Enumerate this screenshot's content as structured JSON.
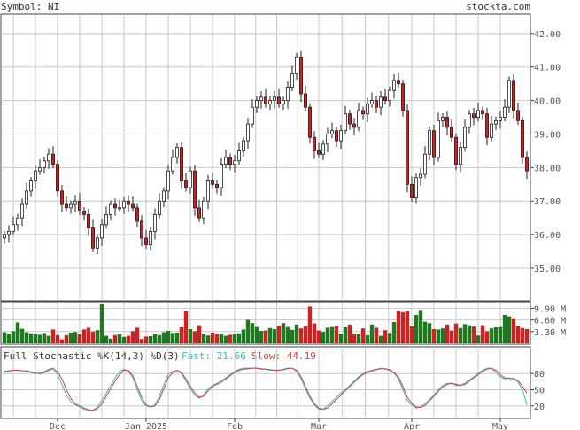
{
  "header": {
    "symbol_label": "Symbol: NI",
    "brand": "stockta.com"
  },
  "stochastic": {
    "title": "Full Stochastic %K(14,3) %D(3)",
    "fast_label": "Fast: 21.66",
    "slow_label": "Slow: 44.19",
    "fast_color": "#44b7b7",
    "slow_color": "#cc4444",
    "levels": [
      80,
      50,
      20
    ]
  },
  "volume_axis": {
    "ticks": [
      "9.90 M",
      "6.60 M",
      "3.30 M"
    ],
    "values": [
      9.9,
      6.6,
      3.3
    ],
    "max": 11.5
  },
  "price_axis": {
    "ticks": [
      42.0,
      41.0,
      40.0,
      39.0,
      38.0,
      37.0,
      36.0,
      35.0
    ],
    "range": [
      34.05,
      42.55
    ]
  },
  "x_axis": {
    "labels": [
      {
        "text": "Dec",
        "index": 12
      },
      {
        "text": "Jan 2025",
        "index": 32
      },
      {
        "text": "Feb",
        "index": 52
      },
      {
        "text": "Mar",
        "index": 71
      },
      {
        "text": "Apr",
        "index": 92
      },
      {
        "text": "May",
        "index": 112
      }
    ]
  },
  "colors": {
    "up": "#1e7a1e",
    "down": "#cc2222",
    "grid": "#c8c8c8",
    "frame": "#444444"
  },
  "chart_data": {
    "type": "candlestick",
    "close": [
      36.0,
      36.1,
      36.3,
      36.5,
      36.9,
      37.3,
      37.6,
      37.9,
      38.0,
      38.2,
      38.4,
      38.1,
      37.3,
      36.9,
      36.8,
      36.9,
      37.0,
      36.7,
      36.6,
      36.2,
      35.6,
      35.9,
      36.3,
      36.6,
      36.9,
      36.8,
      36.8,
      37.0,
      36.9,
      36.8,
      36.4,
      35.9,
      35.7,
      36.1,
      36.6,
      37.0,
      37.3,
      37.9,
      38.3,
      38.6,
      37.6,
      37.4,
      37.9,
      36.8,
      36.5,
      37.0,
      37.6,
      37.5,
      37.4,
      38.1,
      38.3,
      38.1,
      38.2,
      38.5,
      38.8,
      39.3,
      39.8,
      40.0,
      40.1,
      39.9,
      40.0,
      40.1,
      39.9,
      40.0,
      40.4,
      40.8,
      41.3,
      40.2,
      39.8,
      38.9,
      38.5,
      38.4,
      38.7,
      39.0,
      39.1,
      38.8,
      39.1,
      39.6,
      39.3,
      39.2,
      39.7,
      39.6,
      39.9,
      40.0,
      39.8,
      40.1,
      40.0,
      40.3,
      40.6,
      40.5,
      39.7,
      37.5,
      37.1,
      37.7,
      37.8,
      38.4,
      39.1,
      38.3,
      39.4,
      39.5,
      39.2,
      38.9,
      38.1,
      38.6,
      39.2,
      39.6,
      39.5,
      39.7,
      39.6,
      38.9,
      39.3,
      39.4,
      39.5,
      39.8,
      40.6,
      39.7,
      39.4,
      38.3,
      37.9
    ],
    "volume": [
      3.1,
      2.7,
      3.4,
      5.9,
      4.1,
      3.1,
      2.8,
      2.6,
      2.4,
      2.9,
      2.1,
      3.9,
      2.3,
      1.1,
      2.3,
      3.0,
      3.2,
      2.6,
      3.9,
      4.4,
      3.3,
      3.7,
      11.0,
      2.1,
      1.3,
      2.3,
      2.6,
      1.8,
      2.1,
      3.4,
      4.4,
      1.2,
      1.9,
      2.0,
      2.6,
      2.3,
      3.1,
      3.5,
      2.9,
      3.0,
      4.5,
      9.2,
      4.0,
      3.4,
      5.1,
      2.5,
      2.2,
      3.0,
      2.6,
      2.7,
      2.1,
      2.4,
      2.6,
      2.8,
      3.9,
      6.6,
      5.7,
      4.6,
      3.5,
      3.6,
      4.3,
      4.0,
      5.0,
      5.7,
      4.6,
      3.8,
      5.3,
      4.2,
      4.8,
      10.4,
      5.6,
      3.6,
      3.2,
      4.4,
      4.6,
      4.9,
      2.7,
      4.5,
      5.3,
      2.7,
      2.5,
      4.2,
      2.3,
      5.3,
      4.4,
      2.1,
      3.7,
      2.9,
      6.0,
      9.2,
      8.8,
      9.1,
      4.8,
      8.0,
      9.4,
      6.1,
      5.7,
      4.0,
      3.9,
      4.2,
      5.3,
      3.6,
      5.6,
      4.3,
      5.4,
      5.1,
      4.7,
      2.2,
      5.1,
      3.4,
      4.2,
      4.5,
      4.6,
      8.0,
      7.6,
      7.1,
      5.0,
      4.3,
      4.0
    ],
    "stoch_k": [
      82,
      85,
      86,
      86,
      85,
      84,
      82,
      80,
      81,
      84,
      88,
      90,
      78,
      60,
      40,
      28,
      22,
      18,
      14,
      12,
      12,
      18,
      30,
      44,
      58,
      72,
      84,
      88,
      84,
      72,
      50,
      30,
      20,
      18,
      22,
      38,
      60,
      78,
      84,
      86,
      80,
      66,
      52,
      40,
      34,
      40,
      52,
      58,
      62,
      66,
      72,
      78,
      84,
      88,
      90,
      90,
      90,
      90,
      88,
      88,
      86,
      86,
      86,
      88,
      90,
      90,
      84,
      70,
      52,
      34,
      22,
      14,
      14,
      20,
      28,
      36,
      44,
      50,
      58,
      66,
      74,
      80,
      84,
      86,
      88,
      90,
      88,
      86,
      80,
      70,
      50,
      30,
      22,
      16,
      18,
      24,
      32,
      40,
      50,
      58,
      62,
      62,
      58,
      58,
      62,
      68,
      74,
      80,
      86,
      90,
      90,
      82,
      74,
      70,
      72,
      70,
      64,
      50,
      22
    ],
    "stoch_d": [
      84,
      85,
      86,
      86,
      85,
      85,
      83,
      81,
      80,
      82,
      86,
      89,
      83,
      70,
      50,
      34,
      24,
      20,
      16,
      13,
      12,
      15,
      24,
      38,
      52,
      66,
      78,
      86,
      86,
      76,
      56,
      36,
      22,
      18,
      20,
      32,
      52,
      72,
      82,
      86,
      82,
      70,
      56,
      44,
      36,
      38,
      48,
      56,
      60,
      64,
      70,
      76,
      82,
      86,
      88,
      89,
      90,
      90,
      89,
      88,
      87,
      86,
      86,
      87,
      89,
      90,
      86,
      74,
      56,
      38,
      24,
      16,
      14,
      16,
      24,
      32,
      40,
      48,
      56,
      64,
      72,
      78,
      82,
      85,
      87,
      89,
      89,
      87,
      82,
      74,
      56,
      36,
      25,
      18,
      17,
      21,
      29,
      38,
      47,
      55,
      60,
      62,
      60,
      58,
      60,
      66,
      72,
      78,
      84,
      88,
      90,
      86,
      78,
      72,
      71,
      71,
      67,
      56,
      44
    ]
  }
}
